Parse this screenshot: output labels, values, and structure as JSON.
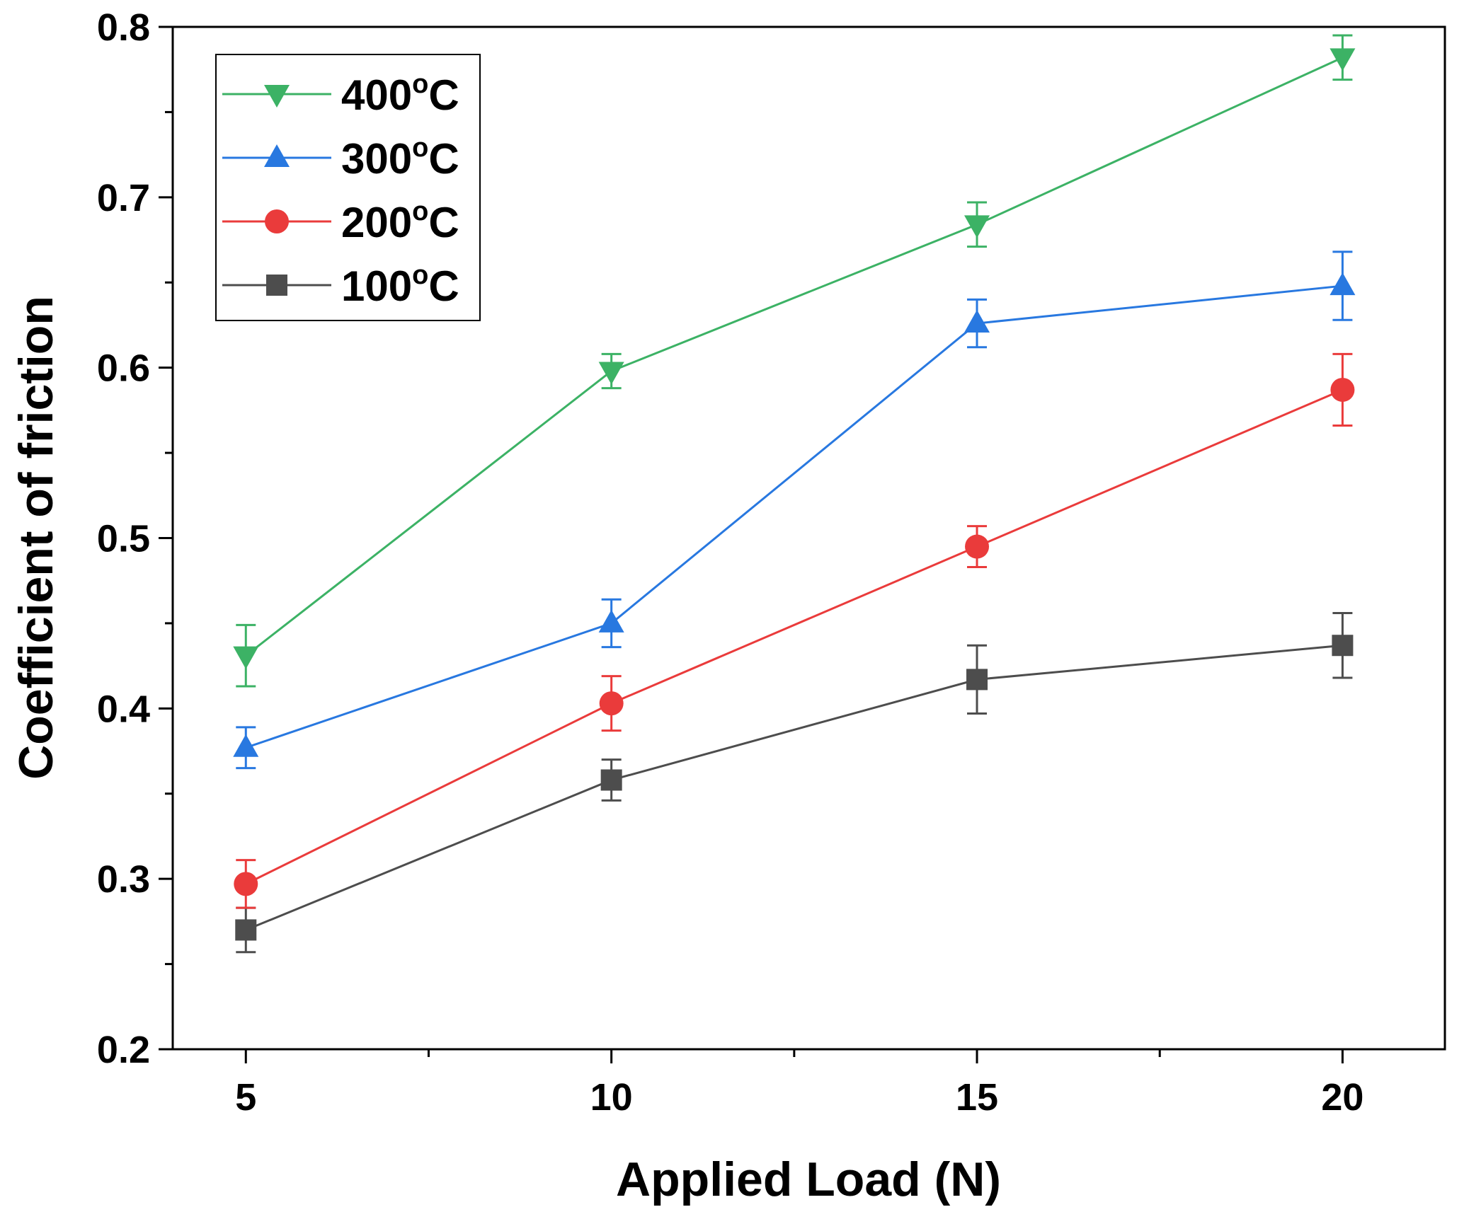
{
  "chart_data": {
    "type": "line",
    "title": "",
    "xlabel": "Applied Load (N)",
    "ylabel": "Coefficient of friction",
    "xlim": [
      4,
      21.4
    ],
    "ylim": [
      0.2,
      0.8
    ],
    "xticks": [
      5,
      10,
      15,
      20
    ],
    "xtick_labels": [
      "5",
      "10",
      "15",
      "20"
    ],
    "yticks": [
      0.2,
      0.3,
      0.4,
      0.5,
      0.6,
      0.7,
      0.8
    ],
    "ytick_labels": [
      "0.2",
      "0.3",
      "0.4",
      "0.5",
      "0.6",
      "0.7",
      "0.8"
    ],
    "grid": false,
    "legend_position": "top-left",
    "x": [
      5,
      10,
      15,
      20
    ],
    "series": [
      {
        "name": "400°C",
        "label_main": "400",
        "label_sup": "o",
        "label_unit": "C",
        "color": "#3cb265",
        "marker": "triangle-down",
        "values": [
          0.431,
          0.598,
          0.684,
          0.782
        ],
        "errors": [
          0.018,
          0.01,
          0.013,
          0.013
        ]
      },
      {
        "name": "300°C",
        "label_main": "300",
        "label_sup": "o",
        "label_unit": "C",
        "color": "#2878e0",
        "marker": "triangle-up",
        "values": [
          0.377,
          0.45,
          0.626,
          0.648
        ],
        "errors": [
          0.012,
          0.014,
          0.014,
          0.02
        ]
      },
      {
        "name": "200°C",
        "label_main": "200",
        "label_sup": "o",
        "label_unit": "C",
        "color": "#ea3b3b",
        "marker": "circle",
        "values": [
          0.297,
          0.403,
          0.495,
          0.587
        ],
        "errors": [
          0.014,
          0.016,
          0.012,
          0.021
        ]
      },
      {
        "name": "100°C",
        "label_main": "100",
        "label_sup": "o",
        "label_unit": "C",
        "color": "#4d4d4d",
        "marker": "square",
        "values": [
          0.27,
          0.358,
          0.417,
          0.437
        ],
        "errors": [
          0.013,
          0.012,
          0.02,
          0.019
        ]
      }
    ]
  }
}
